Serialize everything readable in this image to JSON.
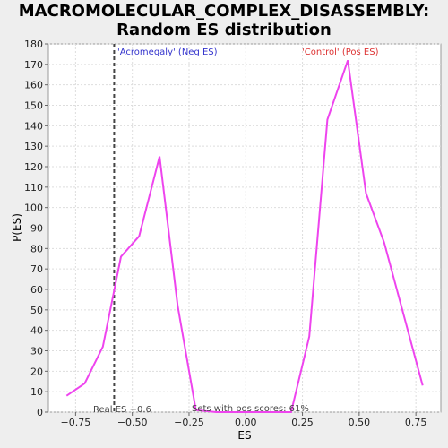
{
  "chart_data": {
    "type": "line",
    "title_line1": "MACROMOLECULAR_COMPLEX_DISASSEMBLY:",
    "title_line2": "Random ES distribution",
    "xlabel": "ES",
    "ylabel": "P(ES)",
    "xlim": [
      -0.87,
      0.86
    ],
    "ylim": [
      0,
      180
    ],
    "xticks": [
      -0.75,
      -0.5,
      -0.25,
      0.0,
      0.25,
      0.5,
      0.75
    ],
    "xtick_labels": [
      "−0.75",
      "−0.50",
      "−0.25",
      "0.00",
      "0.25",
      "0.50",
      "0.75"
    ],
    "yticks": [
      0,
      10,
      20,
      30,
      40,
      50,
      60,
      70,
      80,
      90,
      100,
      110,
      120,
      130,
      140,
      150,
      160,
      170,
      180
    ],
    "grid": true,
    "series": [
      {
        "color": "#ee44ee",
        "x": [
          -0.79,
          -0.71,
          -0.63,
          -0.55,
          -0.47,
          -0.38,
          -0.3,
          -0.22,
          -0.13,
          0.2,
          0.28,
          0.36,
          0.45,
          0.53,
          0.61,
          0.69,
          0.78
        ],
        "y": [
          8,
          14,
          32,
          76,
          86,
          125,
          52,
          1,
          0,
          0,
          37,
          143,
          172,
          107,
          83,
          50,
          13
        ]
      }
    ],
    "real_es": -0.58,
    "annotations": {
      "neg": "'Acromegaly' (Neg ES)",
      "pos": "'Control' (Pos ES)",
      "real_es": "Real ES −0.6",
      "pos_scores": "Sets with pos scores: 61%"
    },
    "colors": {
      "line": "#ee44ee",
      "neg_text": "#3333cc",
      "pos_text": "#dd3333",
      "real_es_line": "#444444"
    }
  }
}
